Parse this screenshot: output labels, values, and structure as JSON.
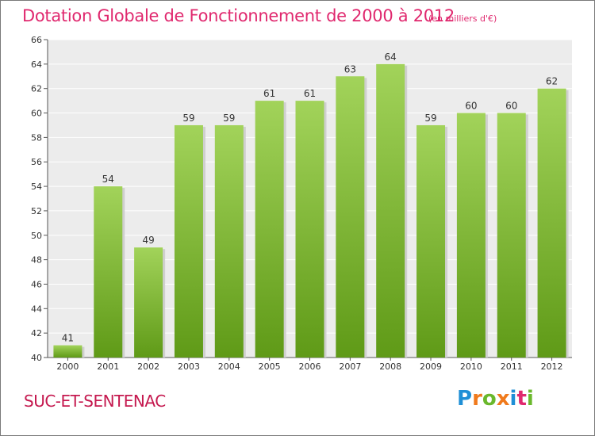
{
  "title": "Dotation Globale de Fonctionnement de 2000 à 2012",
  "unit": "(en milliers d'€)",
  "commune": "SUC-ET-SENTENAC",
  "logo": {
    "text": "Proxiti",
    "letters": [
      {
        "char": "P",
        "color": "#1f8fd6"
      },
      {
        "char": "r",
        "color": "#f07a1c"
      },
      {
        "char": "o",
        "color": "#6ab82c"
      },
      {
        "char": "x",
        "color": "#f07a1c"
      },
      {
        "char": "i",
        "color": "#1f8fd6"
      },
      {
        "char": "t",
        "color": "#e0286e"
      },
      {
        "char": "i",
        "color": "#6ab82c"
      }
    ]
  },
  "colors": {
    "bar_top": "#a2d35a",
    "bar_bottom": "#5f9a17",
    "title": "#e0286e",
    "grid": "#ffffff",
    "plot_bg": "#ececec"
  },
  "chart_data": {
    "type": "bar",
    "title": "Dotation Globale de Fonctionnement de 2000 à 2012",
    "subtitle": "(en milliers d'€)",
    "categories": [
      "2000",
      "2001",
      "2002",
      "2003",
      "2004",
      "2005",
      "2006",
      "2007",
      "2008",
      "2009",
      "2010",
      "2011",
      "2012"
    ],
    "values": [
      41,
      54,
      49,
      59,
      59,
      61,
      61,
      63,
      64,
      59,
      60,
      60,
      62
    ],
    "ylim": [
      40,
      66
    ],
    "yticks": [
      40,
      42,
      44,
      46,
      48,
      50,
      52,
      54,
      56,
      58,
      60,
      62,
      64,
      66
    ],
    "grid": true,
    "data_labels": true
  }
}
